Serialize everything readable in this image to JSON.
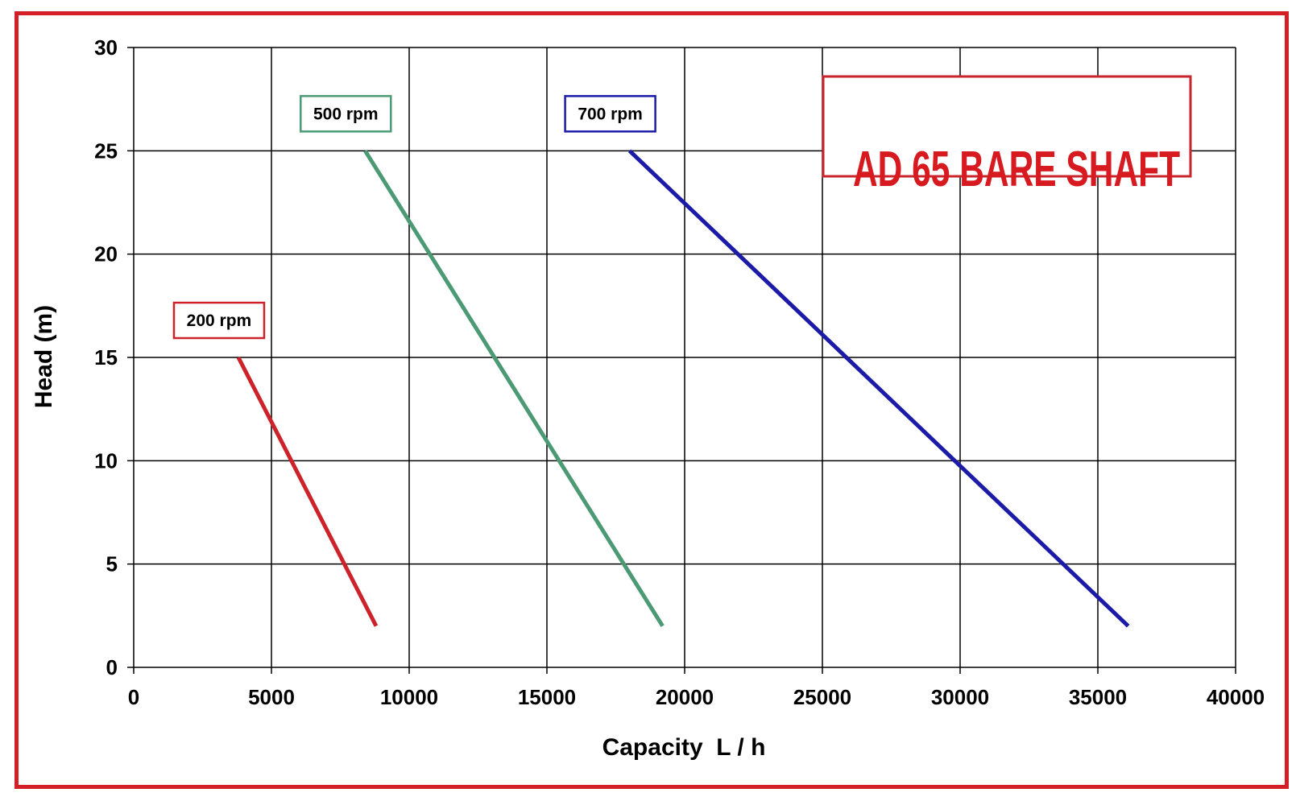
{
  "colors": {
    "frame": "#d32027",
    "grid": "#000000",
    "title": "#d71920",
    "title_box": "#c9252c"
  },
  "chart_data": {
    "type": "line",
    "title": "AD 65 BARE SHAFT",
    "xlabel": "Capacity  L / h",
    "ylabel": "Head (m)",
    "xlim": [
      0,
      40000
    ],
    "ylim": [
      0,
      30
    ],
    "xticks": [
      0,
      5000,
      10000,
      15000,
      20000,
      25000,
      30000,
      35000,
      40000
    ],
    "yticks": [
      0,
      5,
      10,
      15,
      20,
      25,
      30
    ],
    "grid": true,
    "series": [
      {
        "name": "200 rpm",
        "color": "#cc2229",
        "points": [
          [
            3800,
            15
          ],
          [
            8800,
            2
          ]
        ]
      },
      {
        "name": "500 rpm",
        "color": "#4c9a74",
        "points": [
          [
            8400,
            25
          ],
          [
            19200,
            2
          ]
        ]
      },
      {
        "name": "700 rpm",
        "color": "#1b1ba8",
        "points": [
          [
            18000,
            25
          ],
          [
            36100,
            2
          ]
        ]
      }
    ]
  }
}
